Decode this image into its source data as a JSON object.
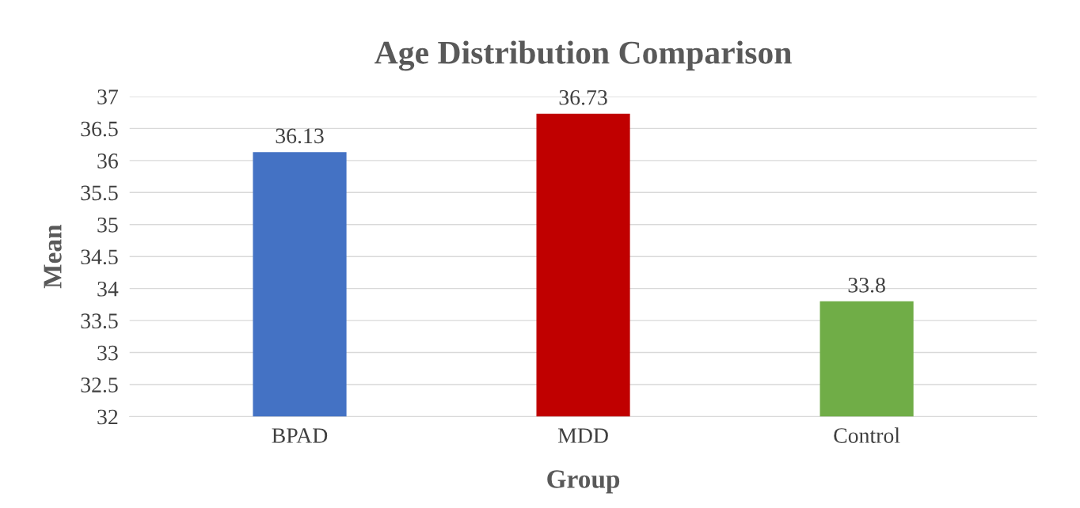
{
  "chart_data": {
    "type": "bar",
    "title": "Age Distribution Comparison",
    "xlabel": "Group",
    "ylabel": "Mean",
    "categories": [
      "BPAD",
      "MDD",
      "Control"
    ],
    "values": [
      36.13,
      36.73,
      33.8
    ],
    "colors": [
      "#4472c4",
      "#c00000",
      "#70ad47"
    ],
    "ylim": [
      32,
      37
    ],
    "yticks": [
      32,
      {
        "value": 32.5,
        "label": "32.5"
      },
      33,
      {
        "value": 33.5,
        "label": "33.5"
      },
      34,
      {
        "value": 34.5,
        "label": "34.5"
      },
      35,
      {
        "value": 35.5,
        "label": "35.5"
      },
      36,
      {
        "value": 36.5,
        "label": "36.5"
      },
      37
    ],
    "grid": "y",
    "data_labels": true
  }
}
